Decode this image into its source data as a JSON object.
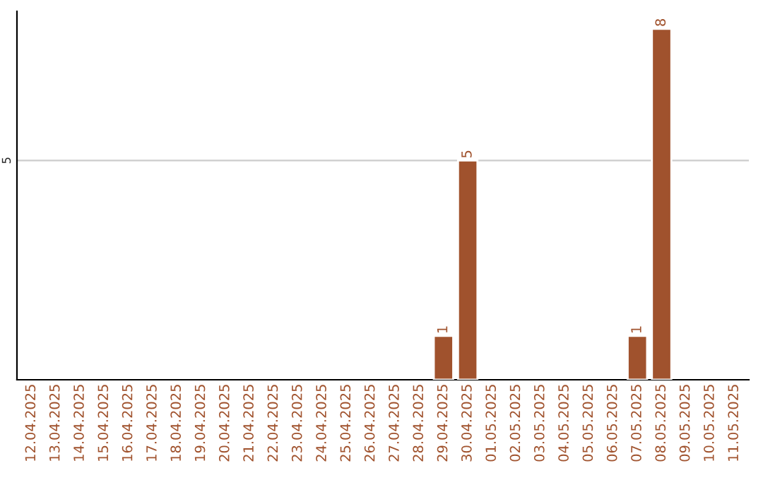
{
  "chart_data": {
    "type": "bar",
    "categories": [
      "12.04.2025",
      "13.04.2025",
      "14.04.2025",
      "15.04.2025",
      "16.04.2025",
      "17.04.2025",
      "18.04.2025",
      "19.04.2025",
      "20.04.2025",
      "21.04.2025",
      "22.04.2025",
      "23.04.2025",
      "24.04.2025",
      "25.04.2025",
      "26.04.2025",
      "27.04.2025",
      "28.04.2025",
      "29.04.2025",
      "30.04.2025",
      "01.05.2025",
      "02.05.2025",
      "03.05.2025",
      "04.05.2025",
      "05.05.2025",
      "06.05.2025",
      "07.05.2025",
      "08.05.2025",
      "09.05.2025",
      "10.05.2025",
      "11.05.2025"
    ],
    "values": [
      null,
      null,
      null,
      null,
      null,
      null,
      null,
      null,
      null,
      null,
      null,
      null,
      null,
      null,
      null,
      null,
      null,
      1,
      5,
      null,
      null,
      null,
      null,
      null,
      null,
      1,
      8,
      null,
      null,
      null
    ],
    "color": "#a0522d",
    "ylim": [
      0,
      8.4
    ],
    "yticks": [
      5
    ],
    "grid": "y",
    "data_labels": true,
    "legend": false
  }
}
